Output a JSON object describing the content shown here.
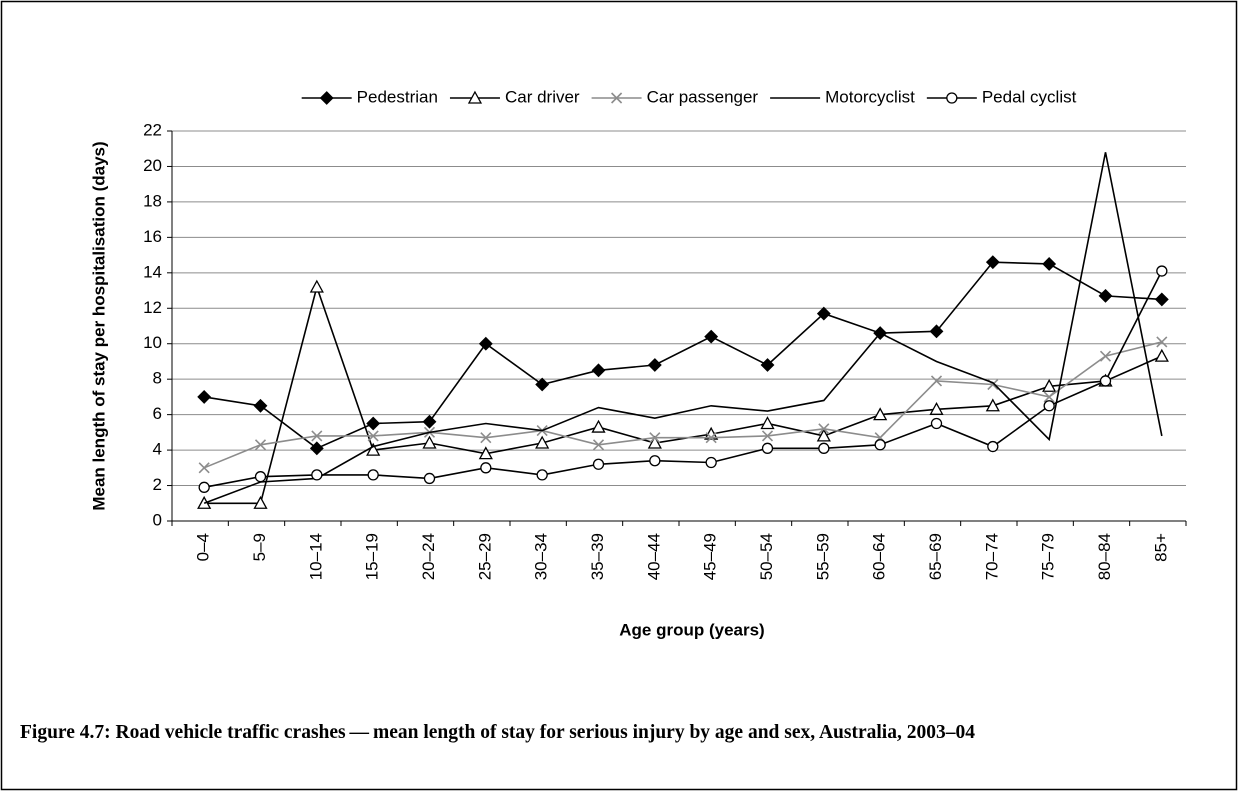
{
  "chart_data": {
    "type": "line",
    "caption": "Figure 4.7: Road vehicle traffic crashes — mean length of stay for serious injury by age and sex, Australia, 2003–04",
    "y_label": "Mean length of stay per hospitalisation (days)",
    "x_label": "Age group (years)",
    "categories": [
      "0–4",
      "5–9",
      "10–14",
      "15–19",
      "20–24",
      "25–29",
      "30–34",
      "35–39",
      "40–44",
      "45–49",
      "50–54",
      "55–59",
      "60–64",
      "65–69",
      "70–74",
      "75–79",
      "80–84",
      "85+"
    ],
    "series": [
      {
        "name": "Pedestrian",
        "color": "#000000",
        "marker": "diamond",
        "values": [
          7.0,
          6.5,
          4.1,
          5.5,
          5.6,
          10.0,
          7.7,
          8.5,
          8.8,
          10.4,
          8.8,
          11.7,
          10.6,
          10.7,
          14.6,
          14.5,
          12.7,
          12.5
        ]
      },
      {
        "name": "Car driver",
        "color": "#000000",
        "marker": "triangle",
        "values": [
          1.0,
          1.0,
          13.2,
          4.0,
          4.4,
          3.8,
          4.4,
          5.3,
          4.4,
          4.9,
          5.5,
          4.8,
          6.0,
          6.3,
          6.5,
          7.6,
          7.9,
          9.3
        ]
      },
      {
        "name": "Car passenger",
        "color": "#8c8c8c",
        "marker": "x",
        "values": [
          3.0,
          4.3,
          4.8,
          4.8,
          5.0,
          4.7,
          5.1,
          4.3,
          4.7,
          4.7,
          4.8,
          5.2,
          4.7,
          7.9,
          7.7,
          7.0,
          9.3,
          10.1
        ]
      },
      {
        "name": "Motorcyclist",
        "color": "#000000",
        "marker": "none",
        "values": [
          1.0,
          2.2,
          2.4,
          4.2,
          5.0,
          5.5,
          5.1,
          6.4,
          5.8,
          6.5,
          6.2,
          6.8,
          10.6,
          9.0,
          7.8,
          4.6,
          20.8,
          4.8
        ]
      },
      {
        "name": "Pedal cyclist",
        "color": "#000000",
        "marker": "circle",
        "values": [
          1.9,
          2.5,
          2.6,
          2.6,
          2.4,
          3.0,
          2.6,
          3.2,
          3.4,
          3.3,
          4.1,
          4.1,
          4.3,
          5.5,
          4.2,
          6.5,
          7.9,
          14.1
        ]
      }
    ],
    "ylim": [
      0,
      22
    ],
    "yticks": [
      0,
      2,
      4,
      6,
      8,
      10,
      12,
      14,
      16,
      18,
      20,
      22
    ],
    "grid": true,
    "legend": "top"
  }
}
